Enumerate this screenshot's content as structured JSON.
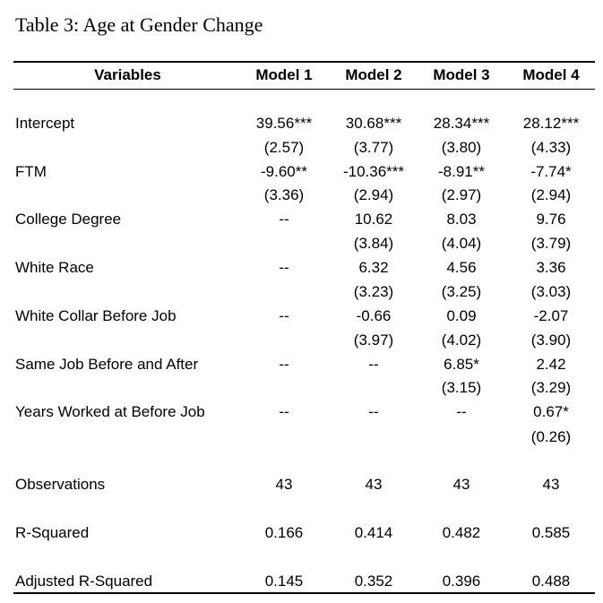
{
  "title": "Table 3: Age at Gender Change",
  "columns": [
    "Variables",
    "Model 1",
    "Model 2",
    "Model 3",
    "Model 4"
  ],
  "rows": [
    {
      "label": "Intercept",
      "coef": [
        "39.56***",
        "30.68***",
        "28.34***",
        "28.12***"
      ],
      "se": [
        "(2.57)",
        "(3.77)",
        "(3.80)",
        "(4.33)"
      ]
    },
    {
      "label": "FTM",
      "coef": [
        "-9.60**",
        "-10.36***",
        "-8.91**",
        "-7.74*"
      ],
      "se": [
        "(3.36)",
        "(2.94)",
        "(2.97)",
        "(2.94)"
      ]
    },
    {
      "label": "College Degree",
      "coef": [
        "--",
        "10.62",
        "8.03",
        "9.76"
      ],
      "se": [
        "",
        "(3.84)",
        "(4.04)",
        "(3.79)"
      ]
    },
    {
      "label": "White Race",
      "coef": [
        "--",
        "6.32",
        "4.56",
        "3.36"
      ],
      "se": [
        "",
        "(3.23)",
        "(3.25)",
        "(3.03)"
      ]
    },
    {
      "label": "White Collar Before Job",
      "coef": [
        "--",
        "-0.66",
        "0.09",
        "-2.07"
      ],
      "se": [
        "",
        "(3.97)",
        "(4.02)",
        "(3.90)"
      ]
    },
    {
      "label": "Same Job Before and After",
      "coef": [
        "--",
        "--",
        "6.85*",
        "2.42"
      ],
      "se": [
        "",
        "",
        "(3.15)",
        "(3.29)"
      ]
    },
    {
      "label": "Years Worked at Before Job",
      "coef": [
        "--",
        "--",
        "--",
        "0.67*"
      ],
      "se": [
        "",
        "",
        "",
        "(0.26)"
      ]
    }
  ],
  "stats": [
    {
      "label": "Observations",
      "values": [
        "43",
        "43",
        "43",
        "43"
      ]
    },
    {
      "label": "R-Squared",
      "values": [
        "0.166",
        "0.414",
        "0.482",
        "0.585"
      ]
    },
    {
      "label": "Adjusted R-Squared",
      "values": [
        "0.145",
        "0.352",
        "0.396",
        "0.488"
      ]
    }
  ]
}
